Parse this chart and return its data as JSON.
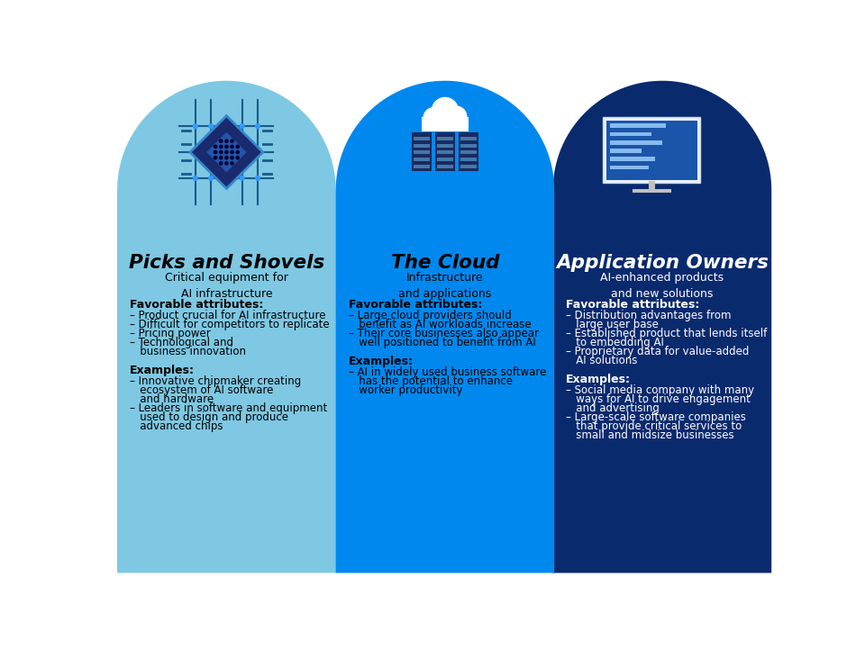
{
  "col1": {
    "bg_color": "#7EC8E3",
    "title": "Picks and Shovels",
    "subtitle": "Critical equipment for\nAI infrastructure",
    "title_color": "#000000",
    "subtitle_color": "#000000",
    "text_color": "#000000",
    "favorable_label": "Favorable attributes:",
    "favorable_items": [
      "Product crucial for AI infrastructure",
      "Difficult for competitors to replicate",
      "Pricing power",
      "Technological and\n   business innovation"
    ],
    "examples_label": "Examples:",
    "examples_items": [
      "Innovative chipmaker creating\n   ecosystem of AI software\n   and hardware",
      "Leaders in software and equipment\n   used to design and produce\n   advanced chips"
    ]
  },
  "col2": {
    "bg_color": "#0088EE",
    "title": "The Cloud",
    "subtitle": "Infrastructure\nand applications",
    "title_color": "#000000",
    "subtitle_color": "#000000",
    "text_color": "#000000",
    "favorable_label": "Favorable attributes:",
    "favorable_items": [
      "Large cloud providers should\n   benefit as AI workloads increase",
      "Their core businesses also appear\n   well positioned to benefit from AI"
    ],
    "examples_label": "Examples:",
    "examples_items": [
      "AI in widely used business software\n   has the potential to enhance\n   worker productivity"
    ]
  },
  "col3": {
    "bg_color": "#0A2A6E",
    "title": "Application Owners",
    "subtitle": "AI-enhanced products\nand new solutions",
    "title_color": "#FFFFFF",
    "subtitle_color": "#FFFFFF",
    "text_color": "#FFFFFF",
    "favorable_label": "Favorable attributes:",
    "favorable_items": [
      "Distribution advantages from\n   large user base",
      "Established product that lends itself\n   to embedding AI",
      "Proprietary data for value-added\n   AI solutions"
    ],
    "examples_label": "Examples:",
    "examples_items": [
      "Social media company with many\n   ways for AI to drive engagement\n   and advertising",
      "Large-scale software companies\n   that provide critical services to\n   small and midsize businesses"
    ]
  },
  "bg_color": "#FFFFFF"
}
